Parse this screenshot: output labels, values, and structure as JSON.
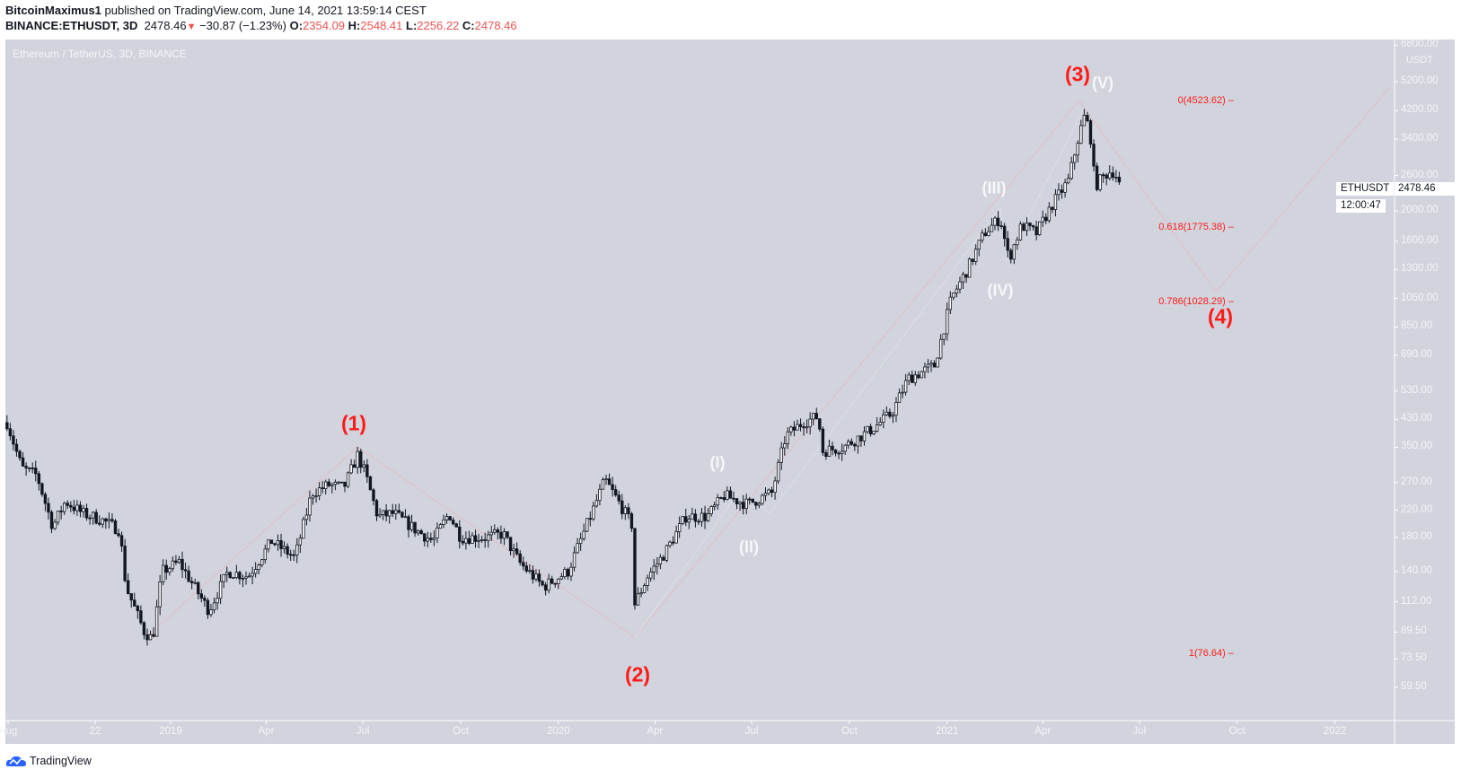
{
  "header": {
    "author": "BitcoinMaximus1",
    "published": "published on TradingView.com, June 14, 2021 13:59:14 CEST",
    "symbol": "BINANCE:ETHUSDT, 3D",
    "last": "2478.46",
    "direction_icon": "triangle-down-icon",
    "change": "−30.87 (−1.23%)",
    "o_label": "O:",
    "o": "2354.09",
    "h_label": "H:",
    "h": "2548.41",
    "l_label": "L:",
    "l": "2256.22",
    "c_label": "C:",
    "c": "2478.46"
  },
  "chart": {
    "legend": "Ethereum / TetherUS, 3D, BINANCE",
    "currency": "USDT",
    "symbol_tag": "ETHUSDT",
    "last_price": "2478.46",
    "countdown": "12:00:47",
    "colors": {
      "background": "#d1d4dc",
      "up": "#ffffff",
      "down": "#131722",
      "wave_red": "#ff1a1a",
      "wave_white": "#f6f7f9",
      "fib": "#ff1a1a"
    },
    "wave_labels": {
      "w1": "(1)",
      "w2": "(2)",
      "w3": "(3)",
      "w4": "(4)",
      "s1": "(I)",
      "s2": "(II)",
      "s3": "(III)",
      "s4": "(IV)",
      "s5": "(V)"
    },
    "fib_levels": [
      {
        "label": "0(4523.62)",
        "price": 4523.62
      },
      {
        "label": "0.618(1775.38)",
        "price": 1775.38
      },
      {
        "label": "0.786(1028.29)",
        "price": 1028.29
      },
      {
        "label": "1(76.64)",
        "price": 76.64
      }
    ]
  },
  "chart_data": {
    "type": "candlestick",
    "interval": "3D",
    "yscale": "log",
    "ylim": [
      46.6,
      7095
    ],
    "xlim": [
      "2018-07-30",
      "2022-03-10"
    ],
    "y_ticks": [
      6800,
      5200,
      4200,
      3400,
      2600,
      2000,
      1600,
      1300,
      1050,
      850,
      690,
      530,
      430,
      350,
      270,
      220,
      180,
      140,
      112,
      89.5,
      73.5,
      59.5
    ],
    "y_tick_labels": [
      "6800.00",
      "5200.00",
      "4200.00",
      "3400.00",
      "2600.00",
      "2000.00",
      "1600.00",
      "1300.00",
      "1050.00",
      "850.00",
      "690.00",
      "530.00",
      "430.00",
      "350.00",
      "270.00",
      "220.00",
      "180.00",
      "140.00",
      "112.00",
      "89.50",
      "73.50",
      "59.50"
    ],
    "x_ticks": [
      {
        "date": "2018-08-01",
        "label": "Aug"
      },
      {
        "date": "2018-10-22",
        "label": "22"
      },
      {
        "date": "2019-01-01",
        "label": "2019"
      },
      {
        "date": "2019-04-01",
        "label": "Apr"
      },
      {
        "date": "2019-07-01",
        "label": "Jul"
      },
      {
        "date": "2019-10-01",
        "label": "Oct"
      },
      {
        "date": "2020-01-01",
        "label": "2020"
      },
      {
        "date": "2020-04-01",
        "label": "Apr"
      },
      {
        "date": "2020-07-01",
        "label": "Jul"
      },
      {
        "date": "2020-10-01",
        "label": "Oct"
      },
      {
        "date": "2021-01-01",
        "label": "2021"
      },
      {
        "date": "2021-04-01",
        "label": "Apr"
      },
      {
        "date": "2021-07-01",
        "label": "Jul"
      },
      {
        "date": "2021-10-01",
        "label": "Oct"
      },
      {
        "date": "2022-01-01",
        "label": "2022"
      }
    ],
    "approx_closes": [
      [
        "2018-07-31",
        420
      ],
      [
        "2018-08-14",
        300
      ],
      [
        "2018-08-28",
        285
      ],
      [
        "2018-09-12",
        195
      ],
      [
        "2018-09-24",
        235
      ],
      [
        "2018-10-10",
        215
      ],
      [
        "2018-10-28",
        205
      ],
      [
        "2018-11-14",
        190
      ],
      [
        "2018-11-20",
        125
      ],
      [
        "2018-12-07",
        90
      ],
      [
        "2018-12-15",
        85
      ],
      [
        "2018-12-24",
        140
      ],
      [
        "2019-01-09",
        150
      ],
      [
        "2019-02-06",
        105
      ],
      [
        "2019-02-24",
        140
      ],
      [
        "2019-03-15",
        135
      ],
      [
        "2019-04-06",
        175
      ],
      [
        "2019-04-28",
        155
      ],
      [
        "2019-05-14",
        250
      ],
      [
        "2019-05-30",
        265
      ],
      [
        "2019-06-13",
        260
      ],
      [
        "2019-06-26",
        330
      ],
      [
        "2019-07-03",
        290
      ],
      [
        "2019-07-15",
        210
      ],
      [
        "2019-07-30",
        215
      ],
      [
        "2019-08-20",
        190
      ],
      [
        "2019-09-05",
        175
      ],
      [
        "2019-09-20",
        215
      ],
      [
        "2019-10-01",
        180
      ],
      [
        "2019-10-25",
        180
      ],
      [
        "2019-11-10",
        185
      ],
      [
        "2019-11-25",
        150
      ],
      [
        "2019-12-18",
        125
      ],
      [
        "2020-01-10",
        140
      ],
      [
        "2020-02-14",
        275
      ],
      [
        "2020-02-28",
        230
      ],
      [
        "2020-03-11",
        195
      ],
      [
        "2020-03-13",
        110
      ],
      [
        "2020-03-25",
        135
      ],
      [
        "2020-04-10",
        160
      ],
      [
        "2020-04-30",
        210
      ],
      [
        "2020-05-20",
        210
      ],
      [
        "2020-06-05",
        245
      ],
      [
        "2020-06-27",
        230
      ],
      [
        "2020-07-20",
        250
      ],
      [
        "2020-08-02",
        380
      ],
      [
        "2020-08-18",
        420
      ],
      [
        "2020-09-02",
        440
      ],
      [
        "2020-09-05",
        340
      ],
      [
        "2020-09-25",
        350
      ],
      [
        "2020-10-22",
        400
      ],
      [
        "2020-11-10",
        450
      ],
      [
        "2020-11-25",
        580
      ],
      [
        "2020-12-20",
        640
      ],
      [
        "2021-01-05",
        1050
      ],
      [
        "2021-01-20",
        1300
      ],
      [
        "2021-02-05",
        1700
      ],
      [
        "2021-02-20",
        1900
      ],
      [
        "2021-02-28",
        1400
      ],
      [
        "2021-03-12",
        1800
      ],
      [
        "2021-03-26",
        1700
      ],
      [
        "2021-04-10",
        2100
      ],
      [
        "2021-04-25",
        2500
      ],
      [
        "2021-05-05",
        3500
      ],
      [
        "2021-05-11",
        4100
      ],
      [
        "2021-05-17",
        3300
      ],
      [
        "2021-05-20",
        2400
      ],
      [
        "2021-05-29",
        2600
      ],
      [
        "2021-06-05",
        2700
      ],
      [
        "2021-06-14",
        2478.46
      ]
    ],
    "wave_path": [
      [
        "2018-12-12",
        88
      ],
      [
        "2019-06-26",
        351
      ],
      [
        "2020-03-13",
        86
      ],
      [
        "2021-05-05",
        4523.62
      ],
      [
        "2021-09-11",
        1102
      ],
      [
        "2022-02-22",
        5000
      ]
    ],
    "subwave_path": [
      [
        "2020-03-13",
        86
      ],
      [
        "2020-06-20",
        255
      ],
      [
        "2020-07-18",
        215
      ],
      [
        "2021-02-20",
        2050
      ],
      [
        "2021-02-26",
        1400
      ],
      [
        "2021-05-10",
        4300
      ]
    ]
  },
  "footer": {
    "brand": "TradingView"
  }
}
